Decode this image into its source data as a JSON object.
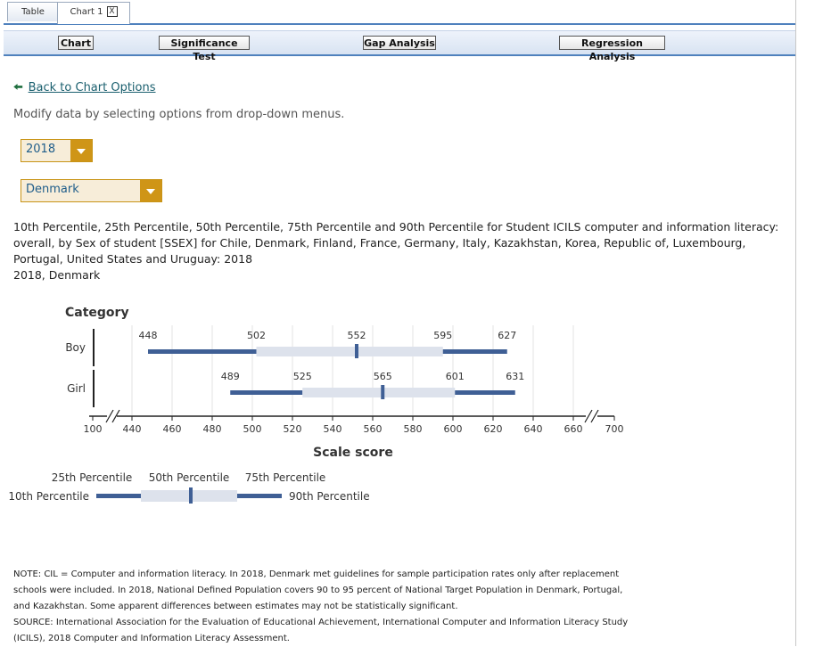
{
  "tabs": [
    {
      "label": "Table"
    },
    {
      "label": "Chart 1",
      "close_label": "X"
    }
  ],
  "toolbar": {
    "chart_label": "Chart",
    "significance_label": "Significance Test",
    "gap_label": "Gap Analysis",
    "regression_label": "Regression Analysis"
  },
  "back_link": "Back to Chart Options",
  "instructions": "Modify data by selecting options from drop-down menus.",
  "year_select": "2018",
  "country_select": "Denmark",
  "description": {
    "line1": "10th Percentile, 25th Percentile, 50th Percentile, 75th Percentile and 90th Percentile for Student ICILS computer and information literacy:",
    "line2": "overall, by Sex of student [SSEX] for Chile, Denmark, Finland, France, Germany, Italy, Kazakhstan, Korea, Republic of, Luxembourg,",
    "line3": "Portugal, United States and Uruguay: 2018",
    "line4": "2018, Denmark"
  },
  "chart_data": {
    "type": "percentile-bar",
    "category_title": "Category",
    "xlabel": "Scale score",
    "xlim": [
      100,
      700
    ],
    "x_axis_break": true,
    "x_ticks": [
      "100",
      "440",
      "460",
      "480",
      "500",
      "520",
      "540",
      "560",
      "580",
      "600",
      "620",
      "640",
      "660",
      "700"
    ],
    "grid": true,
    "categories": [
      "Boy",
      "Girl"
    ],
    "series": [
      {
        "name": "Boy",
        "p10": 448,
        "p25": 502,
        "p50": 552,
        "p75": 595,
        "p90": 627
      },
      {
        "name": "Girl",
        "p10": 489,
        "p25": 525,
        "p50": 565,
        "p75": 601,
        "p90": 631
      }
    ],
    "colors": {
      "outer": "#3f5f95",
      "inner": "#dde2ec",
      "median": "#3f5f95",
      "grid": "#e3e3e3"
    },
    "legend": {
      "p10": "10th Percentile",
      "p25": "25th Percentile",
      "p50": "50th Percentile",
      "p75": "75th Percentile",
      "p90": "90th Percentile",
      "placement": "bottom-left"
    }
  },
  "notes": {
    "line1": "NOTE: CIL = Computer and information literacy. In 2018, Denmark met guidelines for sample participation rates only after replacement",
    "line2": "schools were included. In 2018, National Defined Population covers 90 to 95 percent of National Target Population in Denmark, Portugal,",
    "line3": "and Kazakhstan. Some apparent differences between estimates may not be statistically significant.",
    "line4": "SOURCE: International Association for the Evaluation of Educational Achievement, International Computer and Information Literacy Study",
    "line5": "(ICILS), 2018 Computer and Information Literacy Assessment."
  }
}
